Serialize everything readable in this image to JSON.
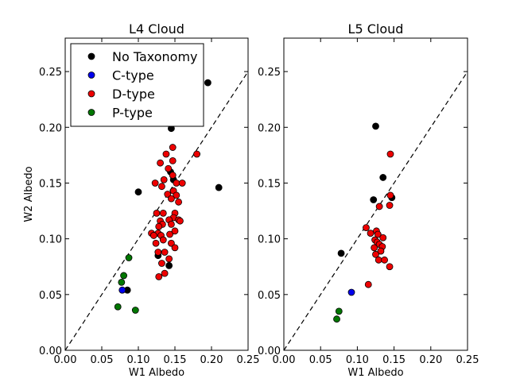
{
  "chart_data": [
    {
      "type": "scatter",
      "title": "L4 Cloud",
      "xlabel": "W1 Albedo",
      "ylabel": "W2 Albedo",
      "xlim": [
        0.0,
        0.25
      ],
      "ylim": [
        0.0,
        0.28
      ],
      "xticks": [
        "0.00",
        "0.05",
        "0.10",
        "0.15",
        "0.20",
        "0.25"
      ],
      "yticks": [
        "0.00",
        "0.05",
        "0.10",
        "0.15",
        "0.20",
        "0.25"
      ],
      "xtick_values": [
        0.0,
        0.05,
        0.1,
        0.15,
        0.2,
        0.25
      ],
      "ytick_values": [
        0.0,
        0.05,
        0.1,
        0.15,
        0.2,
        0.25
      ],
      "reference_line": {
        "label": "1:1",
        "style": "dashed",
        "from": [
          0.0,
          0.0
        ],
        "to": [
          0.25,
          0.25
        ]
      },
      "legend": {
        "placement": "top-left",
        "entries": [
          "No Taxonomy",
          "C-type",
          "D-type",
          "P-type"
        ]
      },
      "series": [
        {
          "name": "No Taxonomy",
          "color": "#000000",
          "points": [
            [
              0.195,
              0.24
            ],
            [
              0.145,
              0.199
            ],
            [
              0.21,
              0.146
            ],
            [
              0.1,
              0.142
            ],
            [
              0.144,
              0.16
            ],
            [
              0.148,
              0.153
            ],
            [
              0.127,
              0.085
            ],
            [
              0.142,
              0.076
            ],
            [
              0.085,
              0.054
            ]
          ]
        },
        {
          "name": "C-type",
          "color": "#0000ee",
          "points": [
            [
              0.078,
              0.054
            ]
          ]
        },
        {
          "name": "D-type",
          "color": "#ee0000",
          "points": [
            [
              0.147,
              0.182
            ],
            [
              0.18,
              0.176
            ],
            [
              0.138,
              0.176
            ],
            [
              0.147,
              0.17
            ],
            [
              0.13,
              0.168
            ],
            [
              0.141,
              0.163
            ],
            [
              0.147,
              0.157
            ],
            [
              0.123,
              0.15
            ],
            [
              0.135,
              0.153
            ],
            [
              0.152,
              0.15
            ],
            [
              0.16,
              0.15
            ],
            [
              0.132,
              0.147
            ],
            [
              0.148,
              0.143
            ],
            [
              0.14,
              0.14
            ],
            [
              0.152,
              0.139
            ],
            [
              0.145,
              0.136
            ],
            [
              0.155,
              0.133
            ],
            [
              0.125,
              0.123
            ],
            [
              0.15,
              0.123
            ],
            [
              0.134,
              0.123
            ],
            [
              0.148,
              0.119
            ],
            [
              0.142,
              0.117
            ],
            [
              0.155,
              0.117
            ],
            [
              0.13,
              0.116
            ],
            [
              0.145,
              0.113
            ],
            [
              0.133,
              0.113
            ],
            [
              0.128,
              0.111
            ],
            [
              0.157,
              0.116
            ],
            [
              0.118,
              0.105
            ],
            [
              0.127,
              0.105
            ],
            [
              0.143,
              0.104
            ],
            [
              0.15,
              0.107
            ],
            [
              0.121,
              0.103
            ],
            [
              0.131,
              0.103
            ],
            [
              0.145,
              0.096
            ],
            [
              0.134,
              0.099
            ],
            [
              0.124,
              0.096
            ],
            [
              0.15,
              0.092
            ],
            [
              0.136,
              0.088
            ],
            [
              0.127,
              0.088
            ],
            [
              0.142,
              0.082
            ],
            [
              0.132,
              0.078
            ],
            [
              0.128,
              0.066
            ],
            [
              0.136,
              0.069
            ]
          ]
        },
        {
          "name": "P-type",
          "color": "#007700",
          "points": [
            [
              0.087,
              0.083
            ],
            [
              0.08,
              0.067
            ],
            [
              0.077,
              0.061
            ],
            [
              0.072,
              0.039
            ],
            [
              0.096,
              0.036
            ]
          ]
        }
      ]
    },
    {
      "type": "scatter",
      "title": "L5 Cloud",
      "xlabel": "W1 Albedo",
      "ylabel": "",
      "xlim": [
        0.0,
        0.25
      ],
      "ylim": [
        0.0,
        0.28
      ],
      "xticks": [
        "0.00",
        "0.05",
        "0.10",
        "0.15",
        "0.20",
        "0.25"
      ],
      "yticks": [
        "0.00",
        "0.05",
        "0.10",
        "0.15",
        "0.20",
        "0.25"
      ],
      "xtick_values": [
        0.0,
        0.05,
        0.1,
        0.15,
        0.2,
        0.25
      ],
      "ytick_values": [
        0.0,
        0.05,
        0.1,
        0.15,
        0.2,
        0.25
      ],
      "reference_line": {
        "label": "1:1",
        "style": "dashed",
        "from": [
          0.0,
          0.0
        ],
        "to": [
          0.25,
          0.25
        ]
      },
      "legend": null,
      "series": [
        {
          "name": "No Taxonomy",
          "color": "#000000",
          "points": [
            [
              0.125,
              0.201
            ],
            [
              0.135,
              0.155
            ],
            [
              0.122,
              0.135
            ],
            [
              0.078,
              0.087
            ],
            [
              0.147,
              0.137
            ]
          ]
        },
        {
          "name": "C-type",
          "color": "#0000ee",
          "points": [
            [
              0.092,
              0.052
            ]
          ]
        },
        {
          "name": "D-type",
          "color": "#ee0000",
          "points": [
            [
              0.145,
              0.176
            ],
            [
              0.145,
              0.139
            ],
            [
              0.13,
              0.129
            ],
            [
              0.144,
              0.13
            ],
            [
              0.112,
              0.11
            ],
            [
              0.118,
              0.105
            ],
            [
              0.126,
              0.107
            ],
            [
              0.128,
              0.104
            ],
            [
              0.135,
              0.101
            ],
            [
              0.124,
              0.099
            ],
            [
              0.127,
              0.097
            ],
            [
              0.13,
              0.095
            ],
            [
              0.134,
              0.093
            ],
            [
              0.123,
              0.092
            ],
            [
              0.132,
              0.089
            ],
            [
              0.125,
              0.086
            ],
            [
              0.129,
              0.081
            ],
            [
              0.137,
              0.081
            ],
            [
              0.144,
              0.075
            ],
            [
              0.115,
              0.059
            ]
          ]
        },
        {
          "name": "P-type",
          "color": "#007700",
          "points": [
            [
              0.075,
              0.035
            ],
            [
              0.072,
              0.028
            ]
          ]
        }
      ]
    }
  ]
}
